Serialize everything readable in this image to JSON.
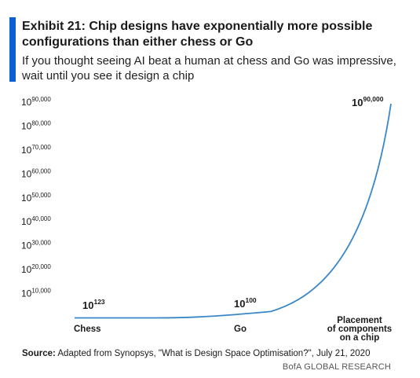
{
  "header": {
    "title": "Exhibit 21: Chip designs have exponentially more possible configurations than either chess or Go",
    "subtitle": "If you thought seeing AI beat a human at chess and Go was impressive, wait until you see it design a chip"
  },
  "chart_data": {
    "type": "line",
    "title": "Exhibit 21: Chip designs have exponentially more possible configurations than either chess or Go",
    "subtitle": "If you thought seeing AI beat a human at chess and Go was impressive, wait until you see it design a chip",
    "y_scale": "log10 (exponent shown)",
    "ylim": [
      0,
      90000
    ],
    "y_ticks": [
      {
        "base": "10",
        "exp": "10,000",
        "value": 10000
      },
      {
        "base": "10",
        "exp": "20,000",
        "value": 20000
      },
      {
        "base": "10",
        "exp": "30,000",
        "value": 30000
      },
      {
        "base": "10",
        "exp": "40,000",
        "value": 40000
      },
      {
        "base": "10",
        "exp": "50,000",
        "value": 50000
      },
      {
        "base": "10",
        "exp": "60,000",
        "value": 60000
      },
      {
        "base": "10",
        "exp": "70,000",
        "value": 70000
      },
      {
        "base": "10",
        "exp": "80,000",
        "value": 80000
      },
      {
        "base": "10",
        "exp": "90,000",
        "value": 90000
      }
    ],
    "categories": [
      "Chess",
      "Go",
      "Placement of components on a chip"
    ],
    "category_lines": [
      [
        "Chess"
      ],
      [
        "Go"
      ],
      [
        "Placement",
        "of components",
        "on a chip"
      ]
    ],
    "series": [
      {
        "values": [
          123,
          100,
          90000
        ],
        "color": "#3a87c8"
      }
    ],
    "data_labels": [
      {
        "base": "10",
        "exp": "123"
      },
      {
        "base": "10",
        "exp": "100"
      },
      {
        "base": "10",
        "exp": "90,000"
      }
    ],
    "grid": false,
    "legend": "none"
  },
  "footer": {
    "source_label": "Source:",
    "source_text": "Adapted from Synopsys, \"What is Design Space Optimisation?\", July 21, 2020",
    "credit": "BofA GLOBAL RESEARCH"
  }
}
